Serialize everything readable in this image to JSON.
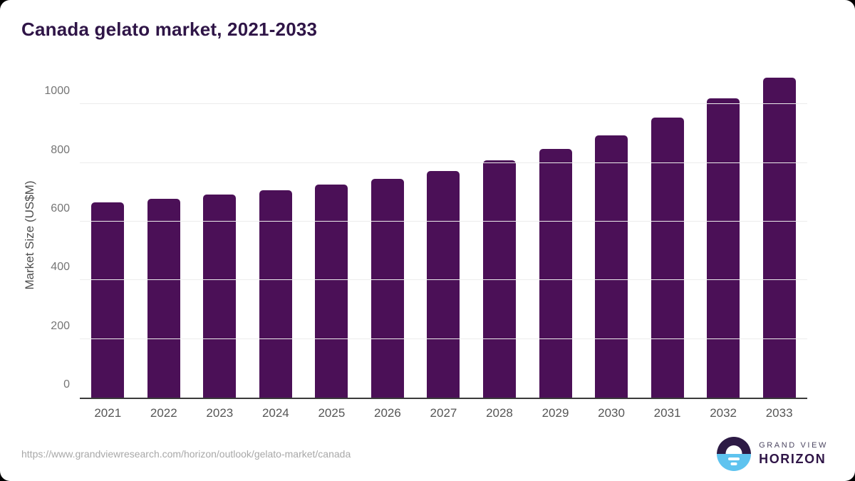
{
  "header": {
    "title": "Canada gelato market, 2021-2033"
  },
  "chart_data": {
    "type": "bar",
    "title": "Canada gelato market, 2021-2033",
    "categories": [
      "2021",
      "2022",
      "2023",
      "2024",
      "2025",
      "2026",
      "2027",
      "2028",
      "2029",
      "2030",
      "2031",
      "2032",
      "2033"
    ],
    "values": [
      665,
      678,
      692,
      706,
      726,
      747,
      772,
      808,
      847,
      895,
      954,
      1020,
      1091
    ],
    "series_name": "Market Size",
    "xlabel": "",
    "ylabel": "Market Size (US$M)",
    "ylim": [
      0,
      1120
    ],
    "yticks": [
      0,
      200,
      400,
      600,
      800,
      1000
    ],
    "grid": "horizontal-only",
    "legend": "none",
    "bar_color": "#4b1057"
  },
  "footer": {
    "source_url": "https://www.grandviewresearch.com/horizon/outlook/gelato-market/canada",
    "logo": {
      "top_text": "GRAND VIEW",
      "bottom_text": "HORIZON"
    }
  },
  "colors": {
    "bar": "#4b1057",
    "title": "#2f1547",
    "gridline": "#ececec",
    "axis_line": "#3a3a3a",
    "y_tick_text": "#757575",
    "x_tick_text": "#565656",
    "url_text": "#a8a8a8",
    "logo_dark": "#2d1a45",
    "logo_blue": "#5ec3ef"
  }
}
